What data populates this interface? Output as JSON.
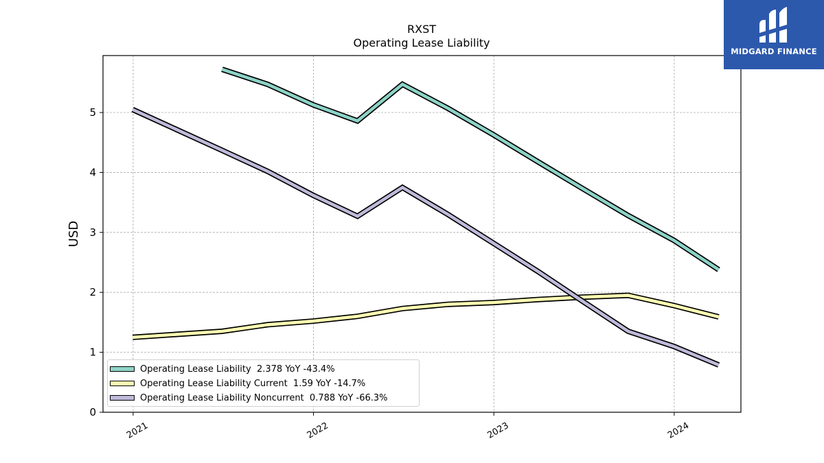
{
  "logo": {
    "text": "MIDGARD FINANCE",
    "background": "#2c59ac",
    "icon": "midgard-logo-mark"
  },
  "chart_data": {
    "type": "line",
    "title": "RXST",
    "subtitle": "Operating Lease Liability",
    "ylabel": "USD",
    "xlabel": "",
    "ylim": [
      0,
      5.95
    ],
    "yticks": [
      0,
      1,
      2,
      3,
      4,
      5
    ],
    "xlim": [
      "2020-11-01",
      "2024-05-15"
    ],
    "xticks": [
      "2021",
      "2022",
      "2023",
      "2024"
    ],
    "grid": true,
    "legend_position": "lower-left",
    "series": [
      {
        "name": "Operating Lease Liability",
        "legend_label": "Operating Lease Liability  2.378 YoY -43.4%",
        "color": "#8dd3c7",
        "points": [
          [
            "2021-06-30",
            5.72
          ],
          [
            "2021-09-30",
            5.47
          ],
          [
            "2021-12-31",
            5.13
          ],
          [
            "2022-03-31",
            4.86
          ],
          [
            "2022-06-30",
            5.47
          ],
          [
            "2022-09-30",
            5.07
          ],
          [
            "2022-12-31",
            4.63
          ],
          [
            "2023-03-31",
            4.18
          ],
          [
            "2023-06-30",
            3.73
          ],
          [
            "2023-09-30",
            3.28
          ],
          [
            "2023-12-31",
            2.87
          ],
          [
            "2024-03-31",
            2.378
          ]
        ]
      },
      {
        "name": "Operating Lease Liability Current",
        "legend_label": "Operating Lease Liability Current  1.59 YoY -14.7%",
        "color": "#ffffb3",
        "points": [
          [
            "2020-12-31",
            1.25
          ],
          [
            "2021-06-30",
            1.35
          ],
          [
            "2021-09-30",
            1.46
          ],
          [
            "2021-12-31",
            1.52
          ],
          [
            "2022-03-31",
            1.6
          ],
          [
            "2022-06-30",
            1.73
          ],
          [
            "2022-09-30",
            1.8
          ],
          [
            "2022-12-31",
            1.83
          ],
          [
            "2023-03-31",
            1.88
          ],
          [
            "2023-06-30",
            1.92
          ],
          [
            "2023-09-30",
            1.95
          ],
          [
            "2023-12-31",
            1.78
          ],
          [
            "2024-03-31",
            1.59
          ]
        ]
      },
      {
        "name": "Operating Lease Liability Noncurrent",
        "legend_label": "Operating Lease Liability Noncurrent  0.788 YoY -66.3%",
        "color": "#bebada",
        "points": [
          [
            "2020-12-31",
            5.05
          ],
          [
            "2021-06-30",
            4.37
          ],
          [
            "2021-09-30",
            4.02
          ],
          [
            "2021-12-31",
            3.62
          ],
          [
            "2022-03-31",
            3.27
          ],
          [
            "2022-06-30",
            3.75
          ],
          [
            "2022-09-30",
            3.3
          ],
          [
            "2022-12-31",
            2.82
          ],
          [
            "2023-03-31",
            2.35
          ],
          [
            "2023-06-30",
            1.85
          ],
          [
            "2023-09-30",
            1.35
          ],
          [
            "2023-12-31",
            1.1
          ],
          [
            "2024-03-31",
            0.788
          ]
        ]
      }
    ]
  }
}
